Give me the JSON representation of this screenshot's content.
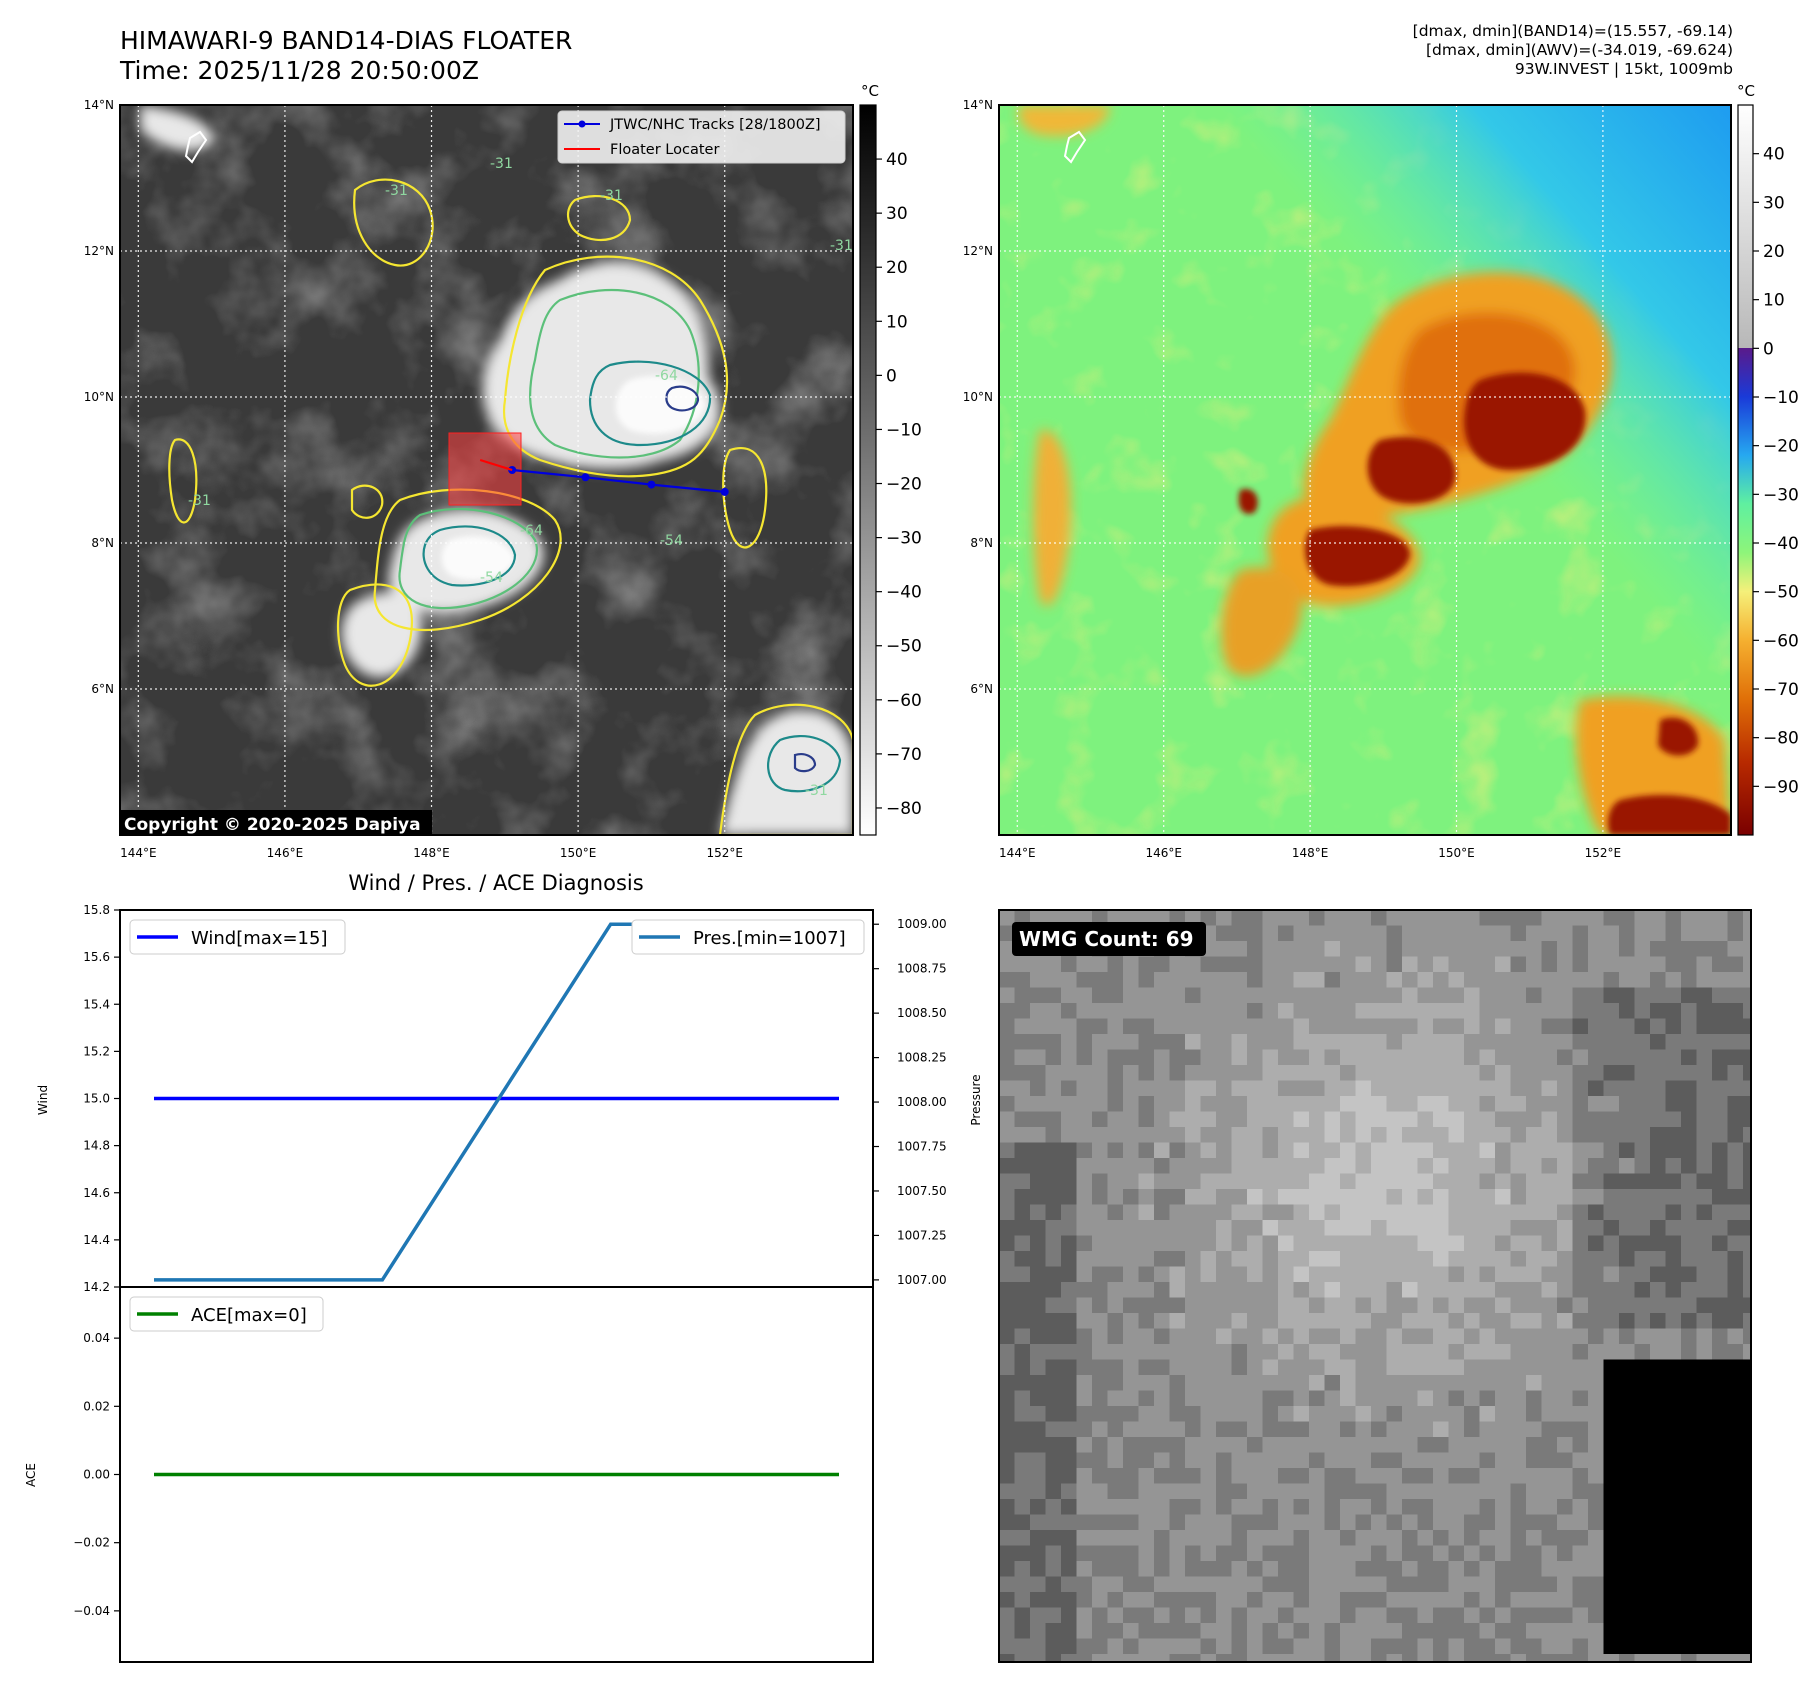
{
  "header": {
    "title": "HIMAWARI-9 BAND14-DIAS FLOATER",
    "time": "Time: 2025/11/28 20:50:00Z",
    "info_lines": [
      "[dmax, dmin](BAND14)=(15.557, -69.14)",
      "[dmax, dmin](AWV)=(-34.019, -69.624)",
      "93W.INVEST | 15kt, 1009mb"
    ]
  },
  "map_axes": {
    "lon_ticks": [
      "144°E",
      "146°E",
      "148°E",
      "150°E",
      "152°E"
    ],
    "lat_ticks": [
      "14°N",
      "12°N",
      "10°N",
      "8°N",
      "6°N"
    ],
    "lon_range": [
      143.75,
      153.75
    ],
    "lat_range": [
      4.0,
      14.0
    ]
  },
  "ir_panel": {
    "colorbar_unit": "°C",
    "colorbar_ticks": [
      "40",
      "30",
      "20",
      "10",
      "0",
      "−10",
      "−20",
      "−30",
      "−40",
      "−50",
      "−60",
      "−70",
      "−80"
    ],
    "colorbar_range": [
      -85,
      50
    ],
    "contour_labels": [
      "-31",
      "-31",
      "-31",
      "-31",
      "-31",
      "-64",
      "-64",
      "-54",
      "-54",
      "-31"
    ],
    "copyright": "Copyright © 2020-2025 Dapiya",
    "legend": {
      "track_label": "JTWC/NHC Tracks [28/1800Z]",
      "locater_label": "Floater Locater"
    },
    "track_points": [
      {
        "lon": 149.1,
        "lat": 9.0
      },
      {
        "lon": 150.1,
        "lat": 8.9
      },
      {
        "lon": 151.0,
        "lat": 8.8
      },
      {
        "lon": 152.0,
        "lat": 8.7
      }
    ]
  },
  "awv_panel": {
    "colorbar_unit": "°C",
    "colorbar_ticks": [
      "40",
      "30",
      "20",
      "10",
      "0",
      "−10",
      "−20",
      "−30",
      "−40",
      "−50",
      "−60",
      "−70",
      "−80",
      "−90"
    ],
    "colorbar_range": [
      -100,
      50
    ]
  },
  "diag_panel": {
    "title": "Wind / Pres. / ACE Diagnosis",
    "wind_ylabel": "Wind",
    "pres_ylabel": "Pressure",
    "ace_ylabel": "ACE",
    "wind_legend": "Wind[max=15]",
    "pres_legend": "Pres.[min=1007]",
    "ace_legend": "ACE[max=0]",
    "wind_ticks": [
      "15.8",
      "15.6",
      "15.4",
      "15.2",
      "15.0",
      "14.8",
      "14.6",
      "14.4",
      "14.2"
    ],
    "pres_ticks": [
      "1009.00",
      "1008.75",
      "1008.50",
      "1008.25",
      "1008.00",
      "1007.75",
      "1007.50",
      "1007.25",
      "1007.00"
    ],
    "ace_ticks": [
      "0.04",
      "0.02",
      "0.00",
      "−0.02",
      "−0.04"
    ]
  },
  "wmg_panel": {
    "label": "WMG Count: 69"
  },
  "chart_data": [
    {
      "type": "line",
      "title": "Wind / Pres. / ACE Diagnosis",
      "x": [
        0,
        1,
        2,
        3
      ],
      "series": [
        {
          "name": "Wind[max=15]",
          "axis": "left",
          "values": [
            15,
            15,
            15,
            15
          ],
          "color": "#0000ff"
        },
        {
          "name": "Pres.[min=1007]",
          "axis": "right",
          "values": [
            1007,
            1007,
            1009,
            1009
          ],
          "color": "#1f77b4"
        }
      ],
      "ylabel": "Wind",
      "y2label": "Pressure",
      "ylim": [
        14.2,
        15.8
      ],
      "y2lim": [
        1006.96,
        1009.08
      ]
    },
    {
      "type": "line",
      "x": [
        0,
        1,
        2,
        3
      ],
      "series": [
        {
          "name": "ACE[max=0]",
          "values": [
            0,
            0,
            0,
            0
          ],
          "color": "#008000"
        }
      ],
      "ylabel": "ACE",
      "ylim": [
        -0.055,
        0.055
      ]
    }
  ],
  "colors": {
    "wind": "#0000ff",
    "pressure": "#1f77b4",
    "ace": "#008000",
    "track": "#0000dd",
    "locater": "#ff0000",
    "contour_yellow": "#f5e631",
    "contour_green": "#5cc07a",
    "contour_teal": "#1d8a8a",
    "contour_navy": "#2a3c8a"
  }
}
